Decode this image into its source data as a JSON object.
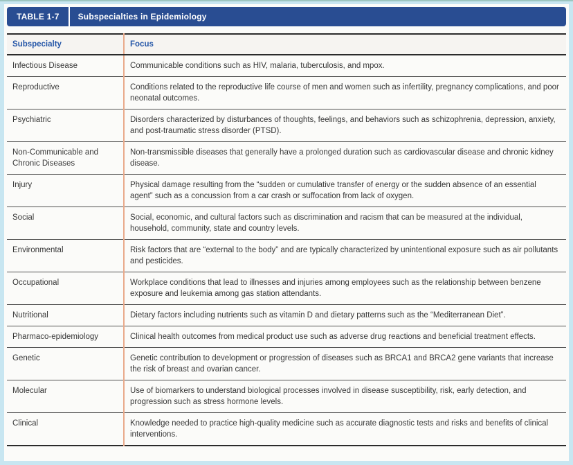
{
  "title_bar": {
    "table_number": "TABLE 1-7",
    "title": "Subspecialties in Epidemiology"
  },
  "table": {
    "columns": [
      "Subspecialty",
      "Focus"
    ],
    "rows": [
      {
        "subspecialty": "Infectious Disease",
        "focus": "Communicable conditions such as HIV, malaria, tuberculosis, and mpox."
      },
      {
        "subspecialty": "Reproductive",
        "focus": "Conditions related to the reproductive life course of men and women such as infertility, pregnancy complications, and poor neonatal outcomes."
      },
      {
        "subspecialty": "Psychiatric",
        "focus": "Disorders characterized by disturbances of thoughts, feelings, and behaviors such as schizophrenia, depression, anxiety, and post-traumatic stress disorder (PTSD)."
      },
      {
        "subspecialty": "Non-Communicable and Chronic Diseases",
        "focus": "Non-transmissible diseases that generally have a prolonged duration such as cardiovascular disease and chronic kidney disease."
      },
      {
        "subspecialty": "Injury",
        "focus": "Physical damage resulting from the “sudden or cumulative transfer of energy or the sudden absence of an essential agent” such as a concussion from a car crash or suffocation from lack of oxygen."
      },
      {
        "subspecialty": "Social",
        "focus": "Social, economic, and cultural factors such as discrimination and racism that can be measured at the individual, household, community, state and country levels."
      },
      {
        "subspecialty": "Environmental",
        "focus": "Risk factors that are “external to the body” and are typically characterized by unintentional exposure such as air pollutants and pesticides."
      },
      {
        "subspecialty": "Occupational",
        "focus": "Workplace conditions that lead to illnesses and injuries among employees such as the relationship between benzene exposure and leukemia among gas station attendants."
      },
      {
        "subspecialty": "Nutritional",
        "focus": "Dietary factors including nutrients such as vitamin D and dietary patterns such as the “Mediterranean Diet”."
      },
      {
        "subspecialty": "Pharmaco-epidemiology",
        "focus": "Clinical health outcomes from medical product use such as adverse drug reactions and beneficial treatment effects."
      },
      {
        "subspecialty": "Genetic",
        "focus": "Genetic contribution to development or progression of diseases such as BRCA1 and BRCA2 gene variants that increase the risk of breast and ovarian cancer."
      },
      {
        "subspecialty": "Molecular",
        "focus": "Use of biomarkers to understand biological processes involved in disease susceptibility, risk, early detection, and progression such as stress hormone levels."
      },
      {
        "subspecialty": "Clinical",
        "focus": "Knowledge needed to practice high-quality medicine such as accurate diagnostic tests and risks and benefits of clinical interventions."
      }
    ]
  },
  "colors": {
    "title_bar_bg": "#294d92",
    "header_text": "#2456a8",
    "header_row_bg": "#f6f4f1",
    "column_divider": "#e9aa8b",
    "body_text": "#383838",
    "frame_bg": "#c8e6f1",
    "frame_top_line": "#9cc5c0",
    "panel_bg": "#fbfbf9"
  }
}
